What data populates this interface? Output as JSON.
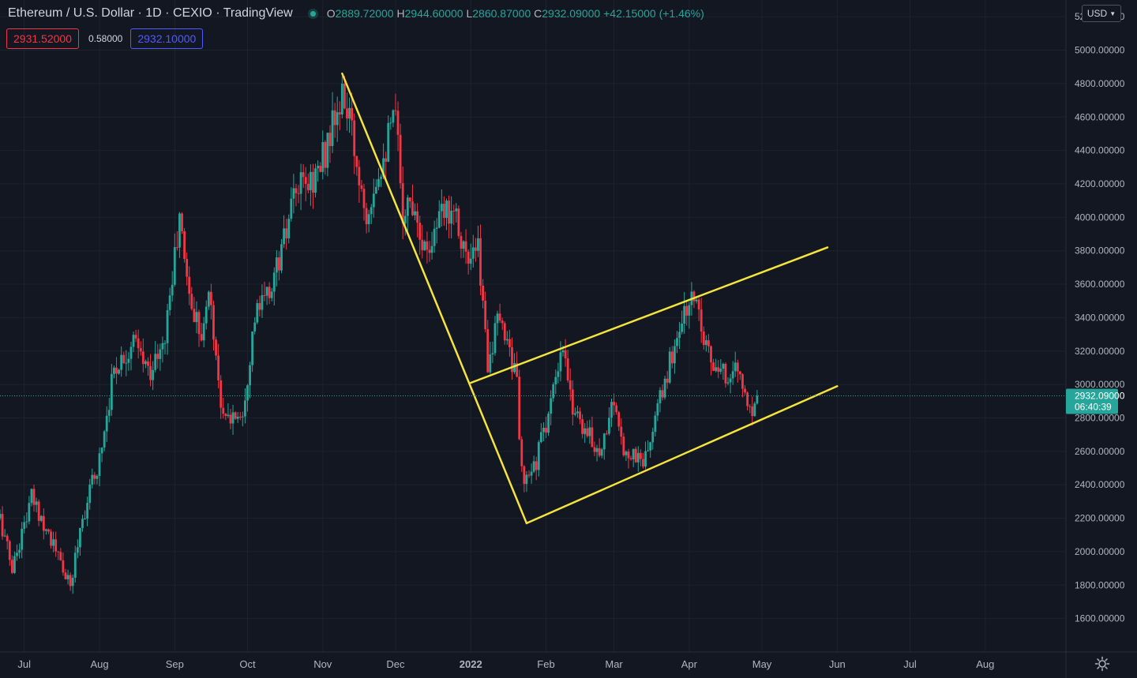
{
  "legend": {
    "symbol": "Ethereum / U.S. Dollar",
    "interval": "1D",
    "exchange": "CEXIO",
    "source": "TradingView",
    "o_label": "O",
    "o_value": "2889.72000",
    "h_label": "H",
    "h_value": "2944.60000",
    "l_label": "L",
    "l_value": "2860.87000",
    "c_label": "C",
    "c_value": "2932.09000",
    "change": "+42.15000 (+1.46%)"
  },
  "prices": {
    "sell": "2931.52000",
    "spread": "0.58000",
    "buy": "2932.10000"
  },
  "currency": {
    "label": "USD",
    "icon": "chevron-down-icon"
  },
  "price_label": {
    "price": "2932.09000",
    "countdown": "06:40:39"
  },
  "settings": {
    "icon": "gear-icon"
  },
  "colors": {
    "up": "#26a69a",
    "down": "#f23645",
    "trendline": "#f5e43c",
    "background": "#131722"
  },
  "chart_data": {
    "type": "candlestick",
    "title": "Ethereum / U.S. Dollar",
    "ylim": [
      1400,
      5300
    ],
    "y_ticks": [
      "5200.00000",
      "5000.00000",
      "4800.00000",
      "4600.00000",
      "4400.00000",
      "4200.00000",
      "4000.00000",
      "3800.00000",
      "3600.00000",
      "3400.00000",
      "3200.00000",
      "3000.00000",
      "2800.00000",
      "2600.00000",
      "2400.00000",
      "2200.00000",
      "2000.00000",
      "1800.00000",
      "1600.00000"
    ],
    "x_ticks": [
      "Jul",
      "Aug",
      "Sep",
      "Oct",
      "Nov",
      "Dec",
      "2022",
      "Feb",
      "Mar",
      "Apr",
      "May",
      "Jun",
      "Jul",
      "Aug"
    ],
    "x_range": [
      "2021-06-21",
      "2022-08-31"
    ],
    "grid": true,
    "last_price": 2932.09,
    "candle_anchors": [
      [
        "2021-06-21",
        2200
      ],
      [
        "2021-06-26",
        1900
      ],
      [
        "2021-07-04",
        2320
      ],
      [
        "2021-07-10",
        2150
      ],
      [
        "2021-07-20",
        1780
      ],
      [
        "2021-07-24",
        2150
      ],
      [
        "2021-08-01",
        2560
      ],
      [
        "2021-08-07",
        3100
      ],
      [
        "2021-08-15",
        3250
      ],
      [
        "2021-08-21",
        3080
      ],
      [
        "2021-08-27",
        3200
      ],
      [
        "2021-09-03",
        3980
      ],
      [
        "2021-09-08",
        3450
      ],
      [
        "2021-09-13",
        3320
      ],
      [
        "2021-09-15",
        3580
      ],
      [
        "2021-09-21",
        2780
      ],
      [
        "2021-09-29",
        2850
      ],
      [
        "2021-10-04",
        3400
      ],
      [
        "2021-10-10",
        3550
      ],
      [
        "2021-10-16",
        3850
      ],
      [
        "2021-10-21",
        4150
      ],
      [
        "2021-10-26",
        4200
      ],
      [
        "2021-10-31",
        4300
      ],
      [
        "2021-11-04",
        4500
      ],
      [
        "2021-11-10",
        4720
      ],
      [
        "2021-11-16",
        4250
      ],
      [
        "2021-11-19",
        4050
      ],
      [
        "2021-11-24",
        4300
      ],
      [
        "2021-12-01",
        4600
      ],
      [
        "2021-12-04",
        4050
      ],
      [
        "2021-12-09",
        4100
      ],
      [
        "2021-12-13",
        3800
      ],
      [
        "2021-12-18",
        3950
      ],
      [
        "2021-12-25",
        4100
      ],
      [
        "2021-12-31",
        3700
      ],
      [
        "2022-01-04",
        3800
      ],
      [
        "2022-01-08",
        3150
      ],
      [
        "2022-01-12",
        3350
      ],
      [
        "2022-01-16",
        3300
      ],
      [
        "2022-01-20",
        3000
      ],
      [
        "2022-01-22",
        2450
      ],
      [
        "2022-01-24",
        2400
      ],
      [
        "2022-01-28",
        2550
      ],
      [
        "2022-02-05",
        3000
      ],
      [
        "2022-02-08",
        3200
      ],
      [
        "2022-02-11",
        2920
      ],
      [
        "2022-02-18",
        2700
      ],
      [
        "2022-02-24",
        2600
      ],
      [
        "2022-02-28",
        2900
      ],
      [
        "2022-03-04",
        2650
      ],
      [
        "2022-03-08",
        2580
      ],
      [
        "2022-03-14",
        2550
      ],
      [
        "2022-03-20",
        2900
      ],
      [
        "2022-03-28",
        3350
      ],
      [
        "2022-04-02",
        3500
      ],
      [
        "2022-04-04",
        3520
      ],
      [
        "2022-04-08",
        3250
      ],
      [
        "2022-04-12",
        3050
      ],
      [
        "2022-04-15",
        3050
      ],
      [
        "2022-04-20",
        3100
      ],
      [
        "2022-04-24",
        2950
      ],
      [
        "2022-04-26",
        2830
      ],
      [
        "2022-04-29",
        2932.09
      ]
    ],
    "trendlines": [
      {
        "name": "downtrend",
        "from": [
          "2021-11-09",
          4860
        ],
        "to": [
          "2022-01-24",
          2170
        ]
      },
      {
        "name": "channel-upper",
        "from": [
          "2022-01-01",
          3010
        ],
        "to": [
          "2022-05-28",
          3820
        ]
      },
      {
        "name": "channel-lower",
        "from": [
          "2022-01-24",
          2170
        ],
        "to": [
          "2022-06-01",
          2990
        ]
      }
    ]
  }
}
